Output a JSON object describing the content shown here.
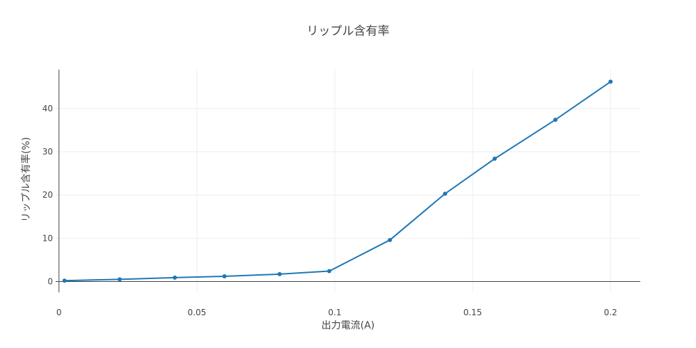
{
  "chart_data": {
    "type": "line",
    "title": "リップル含有率",
    "xlabel": "出力電流(A)",
    "ylabel": "リップル含有率(%)",
    "xlim": [
      -0.0012,
      0.2108
    ],
    "ylim": [
      -2.5,
      49.0
    ],
    "x_ticks": [
      0,
      0.05,
      0.1,
      0.15,
      0.2
    ],
    "x_tick_labels": [
      "0",
      "0.05",
      "0.1",
      "0.15",
      "0.2"
    ],
    "y_ticks": [
      0,
      10,
      20,
      30,
      40
    ],
    "y_tick_labels": [
      "0",
      "10",
      "20",
      "30",
      "40"
    ],
    "grid": true,
    "series": [
      {
        "color": "#1f77b4",
        "x": [
          0.002,
          0.022,
          0.042,
          0.06,
          0.08,
          0.098,
          0.12,
          0.14,
          0.158,
          0.18,
          0.2
        ],
        "y": [
          0.2,
          0.5,
          0.9,
          1.2,
          1.7,
          2.4,
          9.6,
          20.3,
          28.4,
          37.4,
          46.2
        ]
      }
    ]
  }
}
